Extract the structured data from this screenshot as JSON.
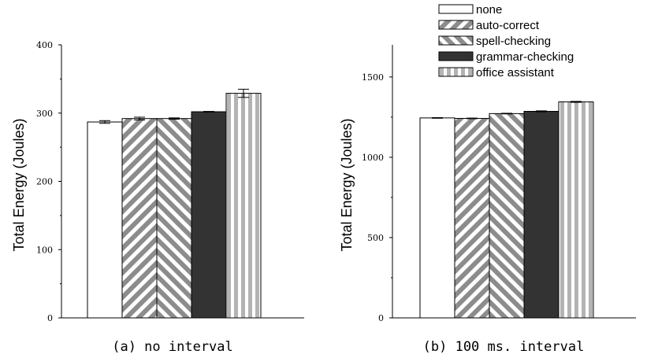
{
  "legend": {
    "entries": [
      {
        "label": "none",
        "pattern": "white"
      },
      {
        "label": "auto-correct",
        "pattern": "diag-right"
      },
      {
        "label": "spell-checking",
        "pattern": "diag-left"
      },
      {
        "label": "grammar-checking",
        "pattern": "black"
      },
      {
        "label": "office assistant",
        "pattern": "vertical"
      }
    ]
  },
  "colors": {
    "bar_dark": "#333333",
    "stripe": "#8c8c8c",
    "vertical_stripe": "#b3b3b3",
    "outline": "#000000"
  },
  "chart_data": [
    {
      "type": "bar",
      "caption": "(a) no interval",
      "ylabel": "Total Energy (Joules)",
      "xlabel": "",
      "ylim": [
        0,
        400
      ],
      "yticks": [
        0,
        100,
        200,
        300,
        400
      ],
      "categories": [
        "none",
        "auto-correct",
        "spell-checking",
        "grammar-checking",
        "office assistant"
      ],
      "values": [
        287,
        292,
        292,
        302,
        329
      ],
      "errors": [
        2,
        2,
        1,
        0.5,
        6
      ],
      "grid": false
    },
    {
      "type": "bar",
      "caption": "(b) 100 ms. interval",
      "ylabel": "Total Energy (Joules)",
      "xlabel": "",
      "ylim": [
        0,
        1700
      ],
      "yticks": [
        0,
        500,
        1000,
        1500
      ],
      "categories": [
        "none",
        "auto-correct",
        "spell-checking",
        "grammar-checking",
        "office assistant"
      ],
      "values": [
        1245,
        1242,
        1272,
        1286,
        1345
      ],
      "errors": [
        2,
        2,
        2,
        3,
        3
      ],
      "grid": false,
      "legend_position": "top"
    }
  ]
}
